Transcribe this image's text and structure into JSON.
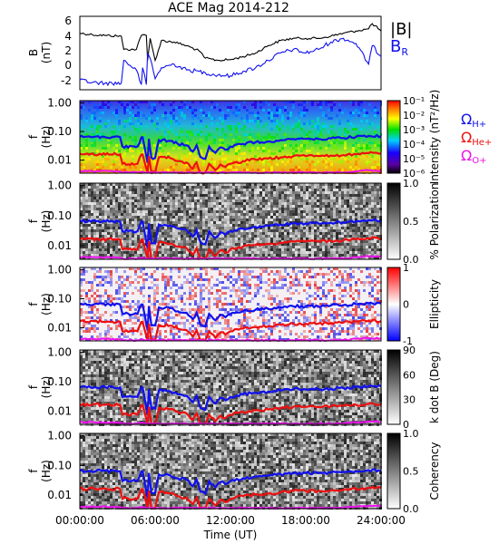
{
  "title": "ACE Mag 2014-212",
  "x_axis": {
    "label": "Time (UT)",
    "ticks": [
      "00:00:00",
      "06:00:00",
      "12:00:00",
      "18:00:00",
      "24:00:00"
    ],
    "range_hours": [
      0,
      24
    ]
  },
  "colors": {
    "B_total": "#000000",
    "B_R": "#1010ee",
    "O_H": "#1010ee",
    "O_He": "#ee1010",
    "O_O": "#ee10ee"
  },
  "freq_ticks": [
    "1.00",
    "0.10",
    "0.01"
  ],
  "chart_data": [
    {
      "type": "line",
      "ylabel": "B (nT)",
      "ylim": [
        -3.5,
        6.5
      ],
      "yticks": [
        "6",
        "4",
        "2",
        "0",
        "-2"
      ],
      "legend": [
        "|B|",
        "B_R"
      ],
      "series": [
        {
          "name": "|B|",
          "color": "#000000",
          "x": [
            0,
            1,
            2,
            3.3,
            3.5,
            4.5,
            4.9,
            5.0,
            5.3,
            5.4,
            5.6,
            6.0,
            6.5,
            7.5,
            8.5,
            9.5,
            10,
            11,
            12,
            13,
            14,
            15,
            16,
            17,
            18,
            19,
            20,
            21,
            22,
            23,
            23.3,
            24
          ],
          "y": [
            4.2,
            4.0,
            3.9,
            3.8,
            2.0,
            2.0,
            3.9,
            4.0,
            3.9,
            0.5,
            3.5,
            0.5,
            3.2,
            3.0,
            2.5,
            1.8,
            0.8,
            0.5,
            0.6,
            1.0,
            1.5,
            2.5,
            3.2,
            3.5,
            3.5,
            3.5,
            3.8,
            4.2,
            4.5,
            4.8,
            5.5,
            4.5
          ]
        },
        {
          "name": "B_R",
          "color": "#1010ee",
          "x": [
            0,
            1,
            2,
            3.3,
            3.5,
            4.5,
            4.9,
            5.0,
            5.3,
            5.4,
            5.6,
            6.0,
            6.5,
            7.5,
            8.5,
            9.5,
            10,
            11,
            12,
            13,
            14,
            15,
            16,
            17,
            18,
            19,
            20,
            21,
            22,
            23,
            23.3,
            24
          ],
          "y": [
            -2.2,
            -2.5,
            -2.6,
            -2.6,
            0.5,
            -0.8,
            -2.8,
            -0.5,
            -2.8,
            1.5,
            0.8,
            -2.0,
            -0.5,
            0.0,
            -0.8,
            -1.0,
            -1.2,
            -1.5,
            -1.6,
            -1.0,
            -0.5,
            0.5,
            1.5,
            2.0,
            1.5,
            2.0,
            3.0,
            3.5,
            2.8,
            0.0,
            2.5,
            1.0
          ]
        }
      ]
    },
    {
      "type": "heatmap",
      "ylabel": "f (Hz)",
      "colorbar_label": "Intensity (nT²/Hz)",
      "colorbar_ticks": [
        "10⁻¹",
        "10⁻²",
        "10⁻³",
        "10⁻⁴",
        "10⁻⁵",
        "10⁻⁶"
      ],
      "colormap": "rainbow",
      "legend": [
        "Ω_H+",
        "Ω_He+",
        "Ω_O+"
      ]
    },
    {
      "type": "heatmap",
      "ylabel": "f (Hz)",
      "colorbar_label": "% Polarization",
      "colorbar_ticks": [
        "1.0",
        "0.5",
        "0.0"
      ],
      "colormap": "gray"
    },
    {
      "type": "heatmap",
      "ylabel": "f (Hz)",
      "colorbar_label": "Ellipticity",
      "colorbar_ticks": [
        "1",
        "0",
        "-1"
      ],
      "colormap": "blue-white-red"
    },
    {
      "type": "heatmap",
      "ylabel": "f (Hz)",
      "colorbar_label": "k dot B (Deg)",
      "colorbar_ticks": [
        "90",
        "60",
        "30",
        "0"
      ],
      "colormap": "gray"
    },
    {
      "type": "heatmap",
      "ylabel": "f (Hz)",
      "colorbar_label": "Coherency",
      "colorbar_ticks": [
        "1.0",
        "0.5",
        "0.0"
      ],
      "colormap": "gray"
    }
  ],
  "gyro_lines": {
    "x": [
      0,
      3.2,
      3.4,
      4.6,
      4.9,
      5.0,
      5.4,
      5.5,
      5.7,
      6.0,
      6.3,
      7.2,
      7.8,
      8.5,
      9.0,
      9.3,
      9.6,
      10.0,
      10.3,
      10.8,
      11.2,
      11.6,
      12.0,
      13.0,
      14.0,
      15.0,
      16.0,
      17.0,
      18.0,
      19.0,
      20.0,
      21.0,
      22.0,
      23.0,
      24.0
    ],
    "f_H": [
      0.066,
      0.064,
      0.03,
      0.03,
      0.063,
      0.063,
      0.008,
      0.055,
      0.012,
      0.012,
      0.05,
      0.047,
      0.037,
      0.033,
      0.02,
      0.033,
      0.013,
      0.011,
      0.03,
      0.018,
      0.028,
      0.023,
      0.03,
      0.037,
      0.042,
      0.045,
      0.05,
      0.055,
      0.055,
      0.055,
      0.058,
      0.06,
      0.065,
      0.07,
      0.068
    ],
    "f_O_factor": 0.0625,
    "f_He_factor": 0.25
  }
}
